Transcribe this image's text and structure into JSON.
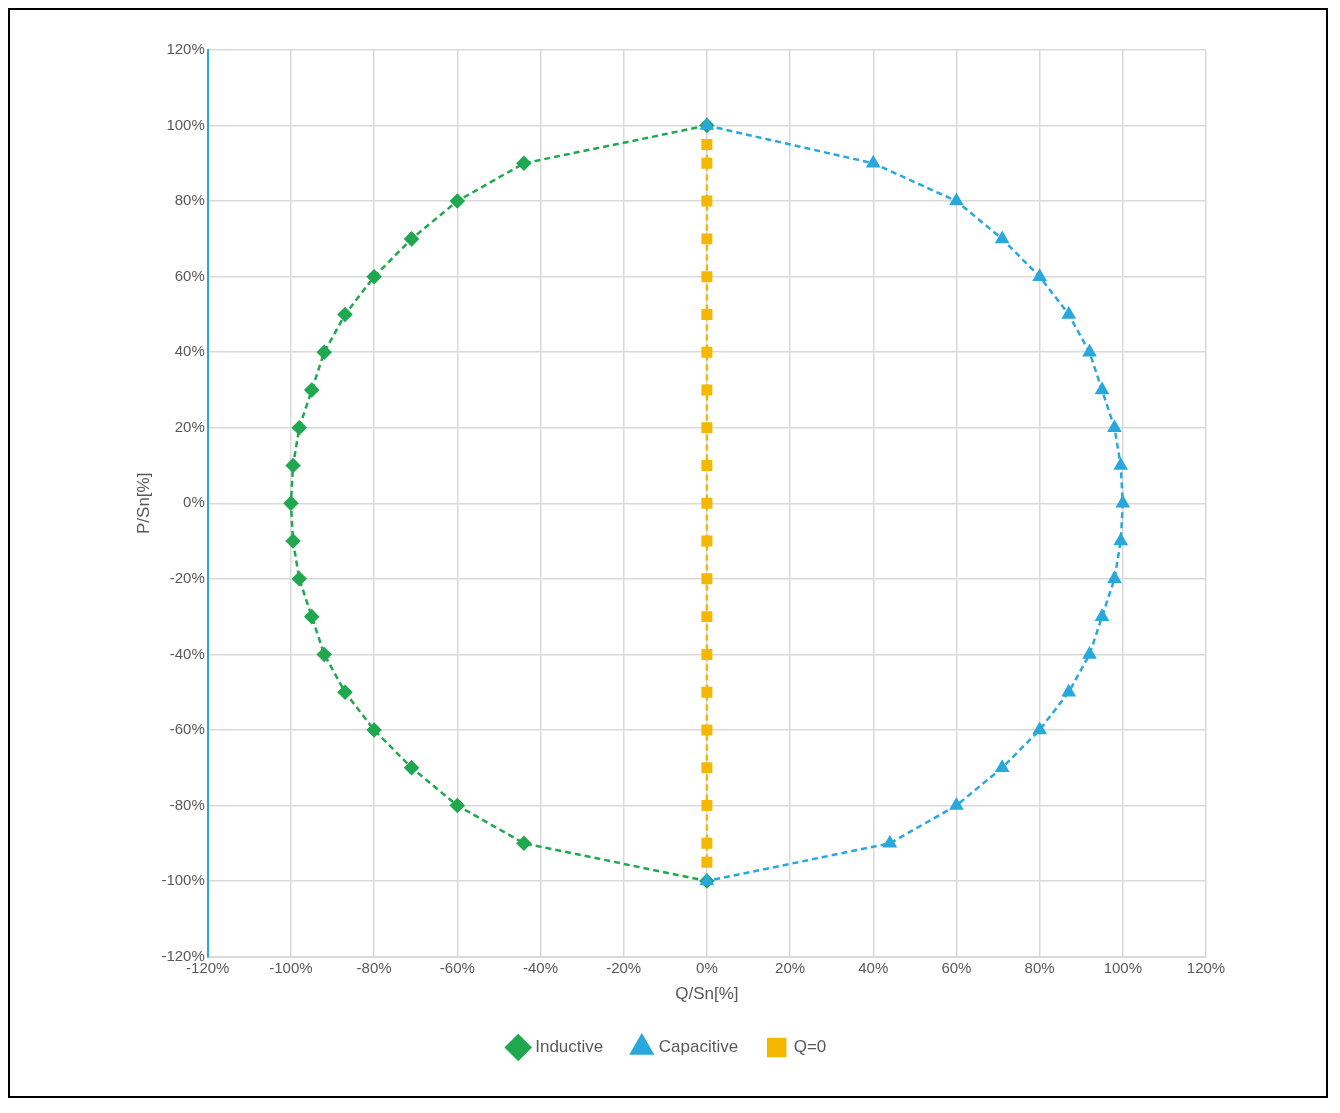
{
  "chart_data": {
    "type": "line",
    "xlabel": "Q/Sn[%]",
    "ylabel": "P/Sn[%]",
    "xlim": [
      -120,
      120
    ],
    "ylim": [
      -120,
      120
    ],
    "xticks": [
      {
        "value": -120,
        "label": "-120%"
      },
      {
        "value": -100,
        "label": "-100%"
      },
      {
        "value": -80,
        "label": "-80%"
      },
      {
        "value": -60,
        "label": "-60%"
      },
      {
        "value": -40,
        "label": "-40%"
      },
      {
        "value": -20,
        "label": "-20%"
      },
      {
        "value": 0,
        "label": "0%"
      },
      {
        "value": 20,
        "label": "20%"
      },
      {
        "value": 40,
        "label": "40%"
      },
      {
        "value": 60,
        "label": "60%"
      },
      {
        "value": 80,
        "label": "80%"
      },
      {
        "value": 100,
        "label": "100%"
      },
      {
        "value": 120,
        "label": "120%"
      }
    ],
    "yticks": [
      {
        "value": -120,
        "label": "-120%"
      },
      {
        "value": -100,
        "label": "-100%"
      },
      {
        "value": -80,
        "label": "-80%"
      },
      {
        "value": -60,
        "label": "-60%"
      },
      {
        "value": -40,
        "label": "-40%"
      },
      {
        "value": -20,
        "label": "-20%"
      },
      {
        "value": 0,
        "label": "0%"
      },
      {
        "value": 20,
        "label": "20%"
      },
      {
        "value": 40,
        "label": "40%"
      },
      {
        "value": 60,
        "label": "60%"
      },
      {
        "value": 80,
        "label": "80%"
      },
      {
        "value": 100,
        "label": "100%"
      },
      {
        "value": 120,
        "label": "120%"
      }
    ],
    "grid": true,
    "legend": "bottom",
    "line_style": "dashed",
    "series": [
      {
        "name": "Inductive",
        "color": "#1fa84f",
        "marker": "diamond",
        "x": [
          0,
          -44,
          -60,
          -71,
          -80,
          -87,
          -92,
          -95,
          -98,
          -99.5,
          -100,
          -99.5,
          -98,
          -95,
          -92,
          -87,
          -80,
          -71,
          -60,
          -44,
          0
        ],
        "values": [
          100,
          90,
          80,
          70,
          60,
          50,
          40,
          30,
          20,
          10,
          0,
          -10,
          -20,
          -30,
          -40,
          -50,
          -60,
          -70,
          -80,
          -90,
          -100
        ]
      },
      {
        "name": "Capacitive",
        "color": "#29a8dc",
        "marker": "triangle",
        "x": [
          0,
          40,
          60,
          71,
          80,
          87,
          92,
          95,
          98,
          99.5,
          100,
          99.5,
          98,
          95,
          92,
          87,
          80,
          71,
          60,
          44,
          0
        ],
        "values": [
          100,
          90,
          80,
          70,
          60,
          50,
          40,
          30,
          20,
          10,
          0,
          -10,
          -20,
          -30,
          -40,
          -50,
          -60,
          -70,
          -80,
          -90,
          -100
        ]
      },
      {
        "name": "Q=0",
        "color": "#f5b800",
        "marker": "square",
        "x": [
          0,
          0,
          0,
          0,
          0,
          0,
          0,
          0,
          0,
          0,
          0,
          0,
          0,
          0,
          0,
          0,
          0,
          0,
          0,
          0,
          0
        ],
        "values": [
          95,
          90,
          80,
          70,
          60,
          50,
          40,
          30,
          20,
          10,
          0,
          -10,
          -20,
          -30,
          -40,
          -50,
          -60,
          -70,
          -80,
          -90,
          -95
        ]
      }
    ]
  }
}
